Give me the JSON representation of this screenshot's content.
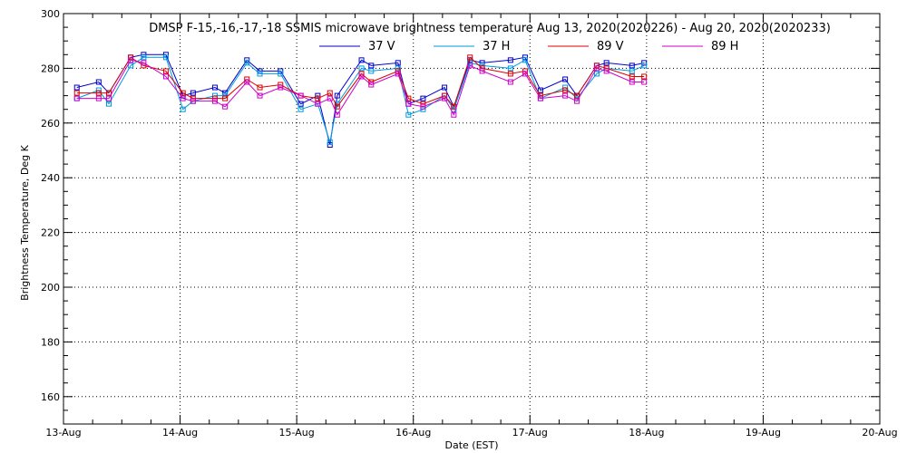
{
  "chart_data": {
    "type": "line",
    "title": "DMSP F-15,-16,-17,-18 SSMIS microwave brightness temperature Aug 13, 2020(2020226) - Aug 20, 2020(2020233)",
    "xlabel": "Date (EST)",
    "ylabel": "Brightness Temperature, Deg K",
    "xlim": [
      "2020-08-13 00:00",
      "2020-08-20 00:00"
    ],
    "ylim": [
      150,
      300
    ],
    "x_tick_labels": [
      "13-Aug",
      "14-Aug",
      "15-Aug",
      "16-Aug",
      "17-Aug",
      "18-Aug",
      "19-Aug",
      "20-Aug"
    ],
    "y_tick_values": [
      160,
      180,
      200,
      220,
      240,
      260,
      280,
      300
    ],
    "grid": true,
    "legend_position": "top",
    "x": [
      "2020-08-13 02:45",
      "2020-08-13 07:15",
      "2020-08-13 09:20",
      "2020-08-13 13:50",
      "2020-08-13 16:30",
      "2020-08-13 21:05",
      "2020-08-14 00:35",
      "2020-08-14 02:40",
      "2020-08-14 07:10",
      "2020-08-14 09:15",
      "2020-08-14 13:45",
      "2020-08-14 16:25",
      "2020-08-14 20:40",
      "2020-08-15 00:50",
      "2020-08-15 04:20",
      "2020-08-15 06:50",
      "2020-08-15 08:20",
      "2020-08-15 13:20",
      "2020-08-15 15:20",
      "2020-08-15 20:50",
      "2020-08-15 23:00",
      "2020-08-16 02:00",
      "2020-08-16 06:25",
      "2020-08-16 08:20",
      "2020-08-16 11:40",
      "2020-08-16 14:10",
      "2020-08-16 20:00",
      "2020-08-16 23:00",
      "2020-08-17 02:10",
      "2020-08-17 07:15",
      "2020-08-17 09:40",
      "2020-08-17 13:45",
      "2020-08-17 15:45",
      "2020-08-17 21:00",
      "2020-08-17 23:30"
    ],
    "series": [
      {
        "name": "37 V",
        "color": "#0000cc",
        "values": [
          273,
          275,
          271,
          284,
          285,
          285,
          270,
          271,
          273,
          271,
          283,
          279,
          279,
          267,
          270,
          252,
          270,
          283,
          281,
          282,
          267,
          269,
          273,
          266,
          283,
          282,
          283,
          284,
          272,
          276,
          270,
          281,
          282,
          281,
          282
        ]
      },
      {
        "name": "37 H",
        "color": "#0099dd",
        "values": [
          269,
          272,
          267,
          281,
          284,
          284,
          265,
          268,
          270,
          270,
          282,
          278,
          278,
          265,
          267,
          253,
          267,
          280,
          279,
          280,
          263,
          265,
          270,
          265,
          282,
          281,
          280,
          283,
          269,
          273,
          269,
          278,
          280,
          279,
          281
        ]
      },
      {
        "name": "89 V",
        "color": "#dd0000",
        "values": [
          271,
          271,
          271,
          284,
          281,
          279,
          271,
          269,
          269,
          269,
          276,
          273,
          274,
          270,
          269,
          271,
          266,
          278,
          275,
          279,
          269,
          267,
          270,
          266,
          284,
          280,
          278,
          279,
          270,
          272,
          270,
          281,
          280,
          277,
          277
        ]
      },
      {
        "name": "89 H",
        "color": "#cc00cc",
        "values": [
          269,
          269,
          269,
          283,
          282,
          277,
          269,
          268,
          268,
          266,
          275,
          270,
          273,
          270,
          267,
          269,
          263,
          277,
          274,
          278,
          267,
          266,
          269,
          263,
          281,
          279,
          275,
          278,
          269,
          270,
          268,
          280,
          279,
          275,
          275
        ]
      }
    ]
  }
}
